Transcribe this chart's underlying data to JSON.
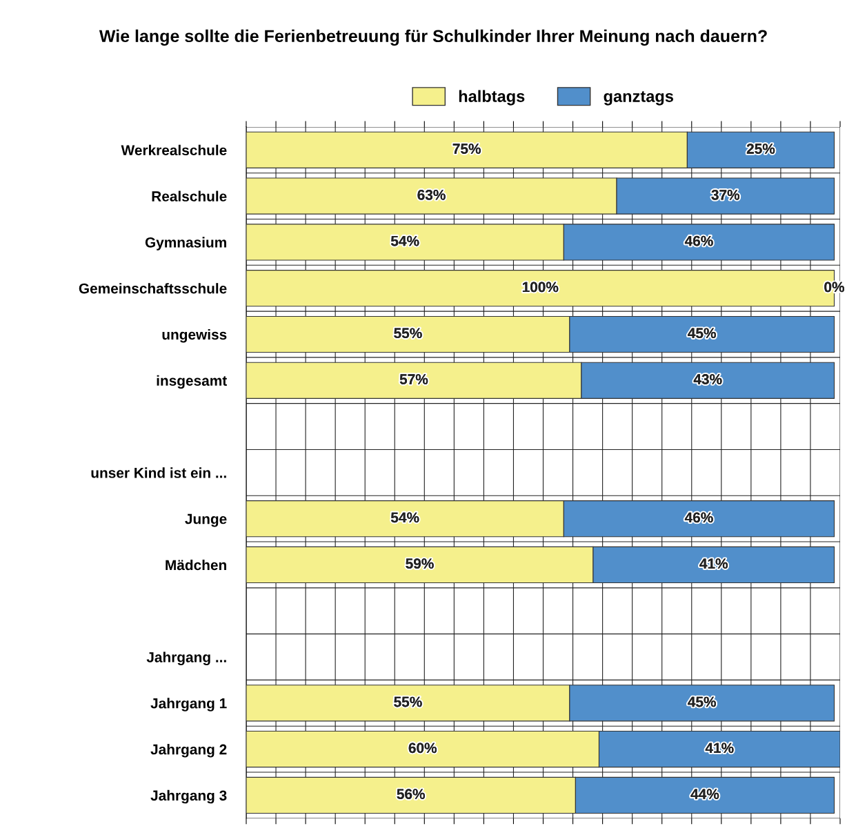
{
  "chart_data": {
    "type": "bar",
    "orientation": "horizontal",
    "stacked": true,
    "title": "Wie lange sollte die Ferienbetreuung für Schulkinder Ihrer Meinung nach dauern?",
    "categories": [
      "Werkrealschule",
      "Realschule",
      "Gymnasium",
      "Gemeinschaftsschule",
      "ungewiss",
      "insgesamt",
      null,
      "unser Kind ist ein ...",
      "Junge",
      "Mädchen",
      null,
      "Jahrgang ...",
      "Jahrgang 1",
      "Jahrgang 2",
      "Jahrgang 3"
    ],
    "series": [
      {
        "name": "halbtags",
        "color": "#f5f08c",
        "values": [
          75,
          63,
          54,
          100,
          55,
          57,
          null,
          null,
          54,
          59,
          null,
          null,
          55,
          60,
          56
        ],
        "value_labels": [
          "75%",
          "63%",
          "54%",
          "100%",
          "55%",
          "57%",
          null,
          null,
          "54%",
          "59%",
          null,
          null,
          "55%",
          "60%",
          "56%"
        ]
      },
      {
        "name": "ganztags",
        "color": "#518fcb",
        "values": [
          25,
          37,
          46,
          0,
          45,
          43,
          null,
          null,
          46,
          41,
          null,
          null,
          45,
          41,
          44
        ],
        "value_labels": [
          "25%",
          "37%",
          "46%",
          "0%",
          "45%",
          "43%",
          null,
          null,
          "46%",
          "41%",
          null,
          null,
          "45%",
          "41%",
          "44%"
        ]
      }
    ],
    "grid": "x",
    "legend": "top",
    "tick_labels": "y"
  }
}
